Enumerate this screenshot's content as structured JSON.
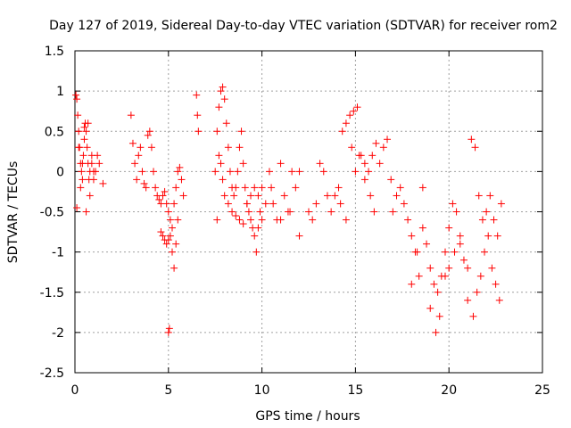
{
  "chart_data": {
    "type": "scatter",
    "title": "Day 127 of 2019, Sidereal Day-to-day VTEC variation (SDTVAR) for receiver rom2",
    "xlabel": "GPS time / hours",
    "ylabel": "SDTVAR / TECUs",
    "xlim": [
      0,
      25
    ],
    "ylim": [
      -2.5,
      1.5
    ],
    "xticks": [
      0,
      5,
      10,
      15,
      20,
      25
    ],
    "xtick_labels": [
      "0",
      "5",
      "10",
      "15",
      "20",
      "25"
    ],
    "yticks": [
      -2.5,
      -2,
      -1.5,
      -1,
      -0.5,
      0,
      0.5,
      1,
      1.5
    ],
    "ytick_labels": [
      "-2.5",
      "-2",
      "-1.5",
      "-1",
      "-0.5",
      "0",
      "0.5",
      "1",
      "1.5"
    ],
    "grid": true,
    "marker": "+",
    "color": "#ff0000",
    "series": [
      {
        "name": "SDTVAR",
        "x": [
          0.05,
          0.1,
          0.15,
          0.2,
          0.25,
          0.3,
          0.35,
          0.4,
          0.45,
          0.5,
          0.55,
          0.6,
          0.65,
          0.7,
          0.75,
          0.8,
          0.9,
          1.0,
          1.1,
          1.2,
          1.3,
          1.5,
          0.1,
          0.2,
          0.3,
          0.4,
          0.5,
          0.6,
          0.7,
          0.8,
          0.9,
          1.0,
          3.0,
          3.1,
          3.2,
          3.3,
          3.4,
          3.5,
          3.6,
          3.7,
          3.8,
          3.9,
          4.0,
          4.1,
          4.2,
          4.3,
          4.4,
          4.5,
          4.6,
          4.7,
          4.8,
          4.9,
          5.0,
          5.1,
          5.2,
          5.3,
          5.4,
          5.5,
          5.6,
          5.7,
          5.8,
          4.6,
          4.7,
          4.8,
          4.9,
          5.0,
          5.1,
          5.2,
          5.3,
          5.4,
          5.5,
          5.0,
          5.05,
          6.5,
          6.55,
          6.6,
          7.5,
          7.6,
          7.7,
          7.8,
          7.9,
          8.0,
          8.1,
          8.2,
          8.3,
          8.4,
          8.5,
          8.6,
          8.7,
          8.8,
          8.9,
          9.0,
          9.1,
          9.2,
          9.3,
          9.4,
          9.5,
          9.6,
          9.7,
          9.8,
          9.9,
          10.0,
          7.6,
          7.7,
          7.8,
          7.9,
          8.0,
          8.2,
          8.4,
          8.6,
          8.8,
          9.0,
          9.2,
          9.4,
          9.6,
          9.8,
          10.0,
          10.2,
          10.4,
          10.6,
          10.8,
          11.0,
          11.2,
          11.4,
          11.6,
          11.8,
          12.0,
          10.5,
          11.0,
          11.5,
          12.0,
          12.5,
          12.7,
          12.9,
          13.1,
          13.3,
          13.5,
          13.7,
          13.9,
          14.1,
          14.3,
          14.5,
          14.7,
          14.9,
          15.1,
          15.3,
          15.5,
          15.7,
          15.9,
          16.1,
          14.2,
          14.5,
          14.8,
          15.0,
          15.2,
          15.5,
          15.8,
          16.0,
          16.3,
          16.5,
          16.7,
          16.9,
          17.0,
          17.2,
          17.4,
          17.6,
          17.8,
          18.0,
          18.2,
          18.4,
          18.6,
          18.8,
          19.0,
          19.2,
          19.4,
          19.6,
          19.8,
          20.0,
          20.2,
          20.4,
          20.6,
          20.8,
          21.0,
          18.0,
          18.3,
          18.6,
          19.0,
          19.3,
          19.5,
          19.8,
          20.0,
          20.3,
          20.6,
          21.0,
          21.2,
          21.4,
          21.6,
          21.8,
          22.0,
          22.2,
          22.4,
          22.6,
          22.8,
          21.3,
          21.5,
          21.7,
          21.9,
          22.1,
          22.3,
          22.5,
          22.7
        ],
        "y": [
          0.95,
          0.9,
          0.7,
          0.5,
          0.3,
          0.1,
          0.0,
          -0.1,
          0.2,
          0.55,
          0.6,
          0.5,
          0.3,
          0.1,
          -0.1,
          0.0,
          0.1,
          -0.1,
          0.0,
          0.2,
          0.1,
          -0.15,
          -0.45,
          0.3,
          -0.2,
          0.1,
          0.4,
          -0.5,
          0.6,
          -0.3,
          0.2,
          0.0,
          0.7,
          0.35,
          0.1,
          -0.1,
          0.2,
          0.3,
          0.0,
          -0.15,
          -0.2,
          0.45,
          0.5,
          0.3,
          0.0,
          -0.2,
          -0.3,
          -0.35,
          -0.4,
          -0.3,
          -0.25,
          -0.4,
          -0.5,
          -0.6,
          -0.7,
          -0.4,
          -0.2,
          0.0,
          0.05,
          -0.1,
          -0.3,
          -0.75,
          -0.8,
          -0.85,
          -0.9,
          -0.85,
          -0.8,
          -1.0,
          -1.2,
          -0.9,
          -0.6,
          -2.0,
          -1.95,
          0.95,
          0.7,
          0.5,
          0.0,
          0.5,
          0.8,
          1.0,
          1.05,
          0.9,
          0.6,
          0.3,
          0.0,
          -0.2,
          -0.3,
          -0.2,
          0.0,
          0.3,
          0.5,
          0.1,
          -0.2,
          -0.4,
          -0.5,
          -0.6,
          -0.7,
          -0.8,
          -1.0,
          -0.7,
          -0.5,
          -0.6,
          -0.6,
          0.2,
          0.1,
          -0.1,
          -0.3,
          -0.4,
          -0.5,
          -0.55,
          -0.6,
          -0.65,
          -0.4,
          -0.3,
          -0.2,
          -0.3,
          -0.2,
          -0.4,
          0.0,
          -0.4,
          -0.6,
          0.1,
          -0.3,
          -0.5,
          0.0,
          -0.2,
          0.0,
          -0.2,
          -0.6,
          -0.5,
          -0.8,
          -0.5,
          -0.6,
          -0.4,
          0.1,
          0.0,
          -0.3,
          -0.5,
          -0.3,
          -0.2,
          0.5,
          0.6,
          0.7,
          0.75,
          0.8,
          0.2,
          0.1,
          0.0,
          0.2,
          0.35,
          -0.4,
          -0.6,
          0.3,
          0.0,
          0.2,
          -0.1,
          -0.3,
          -0.5,
          0.1,
          0.3,
          0.4,
          -0.1,
          -0.5,
          -0.3,
          -0.2,
          -0.4,
          -0.6,
          -0.8,
          -1.0,
          -1.3,
          -0.7,
          -0.9,
          -1.2,
          -1.4,
          -1.5,
          -1.3,
          -1.0,
          -0.7,
          -0.4,
          -0.5,
          -0.9,
          -1.1,
          -1.2,
          -1.4,
          -1.0,
          -0.2,
          -1.7,
          -2.0,
          -1.8,
          -1.3,
          -1.2,
          -1.0,
          -0.8,
          -1.6,
          0.4,
          0.3,
          -0.3,
          -0.6,
          -0.5,
          -0.3,
          -0.6,
          -0.8,
          -0.4,
          -1.8,
          -1.5,
          -1.3,
          -1.0,
          -0.8,
          -1.2,
          -1.4,
          -1.6
        ]
      }
    ]
  }
}
